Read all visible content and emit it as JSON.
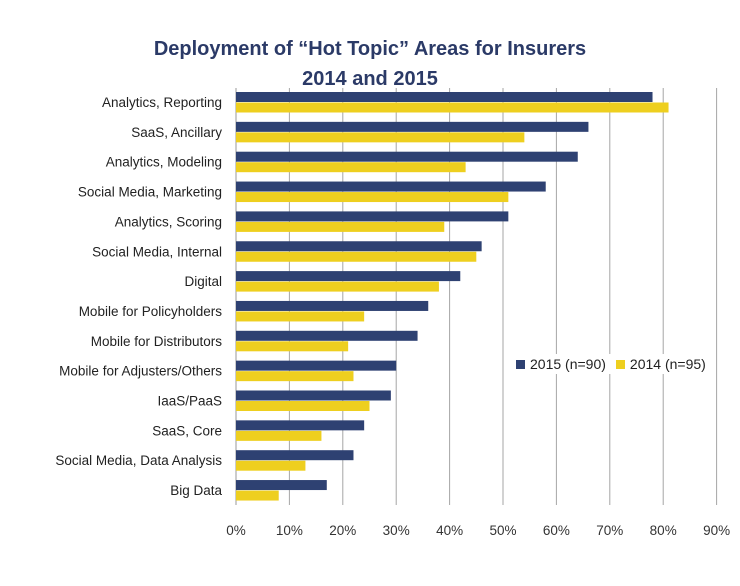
{
  "chart_data": {
    "type": "bar",
    "orientation": "horizontal",
    "title": [
      "Deployment of “Hot Topic” Areas for Insurers",
      "2014 and 2015"
    ],
    "categories": [
      "Analytics, Reporting",
      "SaaS, Ancillary",
      "Analytics, Modeling",
      "Social Media, Marketing",
      "Analytics, Scoring",
      "Social Media, Internal",
      "Digital",
      "Mobile for Policyholders",
      "Mobile for Distributors",
      "Mobile for Adjusters/Others",
      "IaaS/PaaS",
      "SaaS, Core",
      "Social Media, Data Analysis",
      "Big Data"
    ],
    "series": [
      {
        "name": "2015 (n=90)",
        "color": "#2e4172",
        "values": [
          78,
          66,
          64,
          58,
          51,
          46,
          42,
          36,
          34,
          30,
          29,
          24,
          22,
          17
        ]
      },
      {
        "name": "2014 (n=95)",
        "color": "#eecf1f",
        "values": [
          81,
          54,
          43,
          51,
          39,
          45,
          38,
          24,
          21,
          22,
          25,
          16,
          13,
          8
        ]
      }
    ],
    "xlim": [
      0,
      90
    ],
    "xticks": [
      "0%",
      "10%",
      "20%",
      "30%",
      "40%",
      "50%",
      "60%",
      "70%",
      "80%",
      "90%"
    ],
    "grid": "vertical",
    "legend": "right-middle"
  }
}
